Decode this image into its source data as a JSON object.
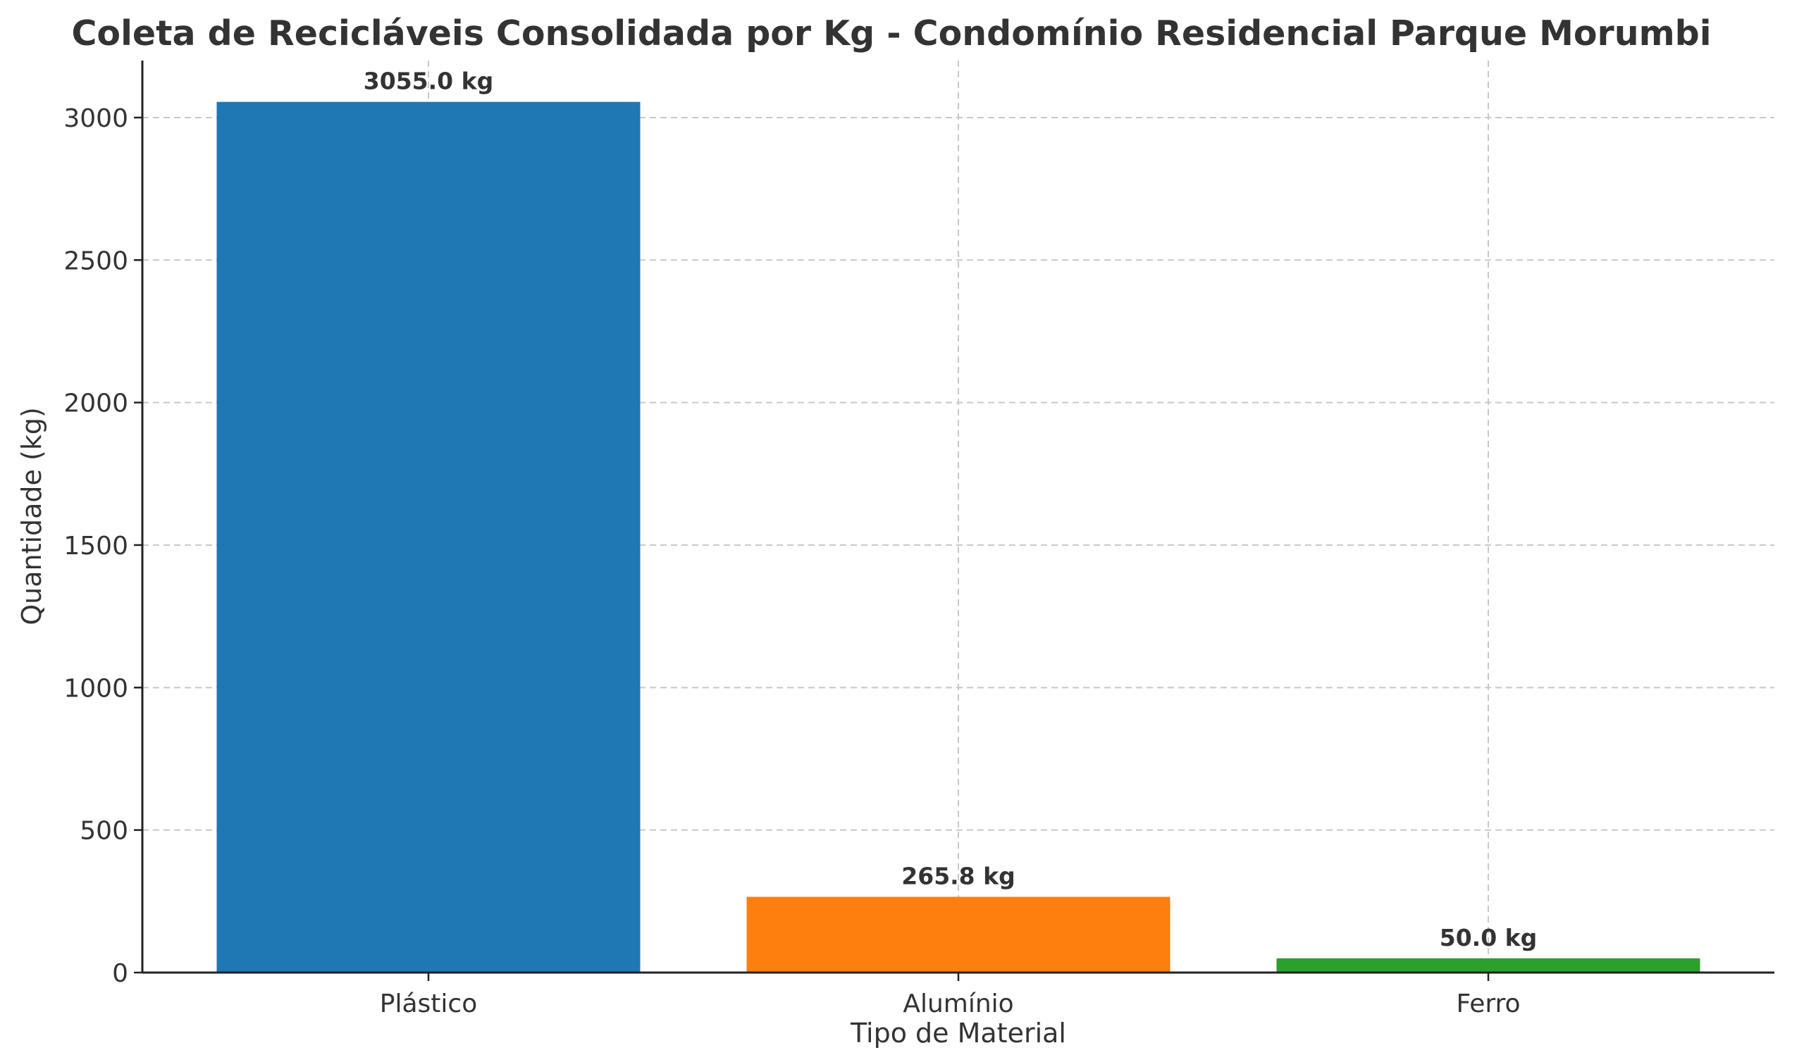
{
  "chart_data": {
    "type": "bar",
    "title": "Coleta de Recicláveis Consolidada por Kg - Condomínio Residencial Parque Morumbi",
    "xlabel": "Tipo de Material",
    "ylabel": "Quantidade (kg)",
    "categories": [
      "Plástico",
      "Alumínio",
      "Ferro"
    ],
    "values": [
      3055.0,
      265.8,
      50.0
    ],
    "data_labels": [
      "3055.0 kg",
      "265.8 kg",
      "50.0 kg"
    ],
    "colors": [
      "#1f77b4",
      "#ff7f0e",
      "#2ca02c"
    ],
    "ylim": [
      0,
      3200
    ],
    "yticks": [
      0,
      500,
      1000,
      1500,
      2000,
      2500,
      3000
    ],
    "grid": true,
    "legend": "none"
  }
}
